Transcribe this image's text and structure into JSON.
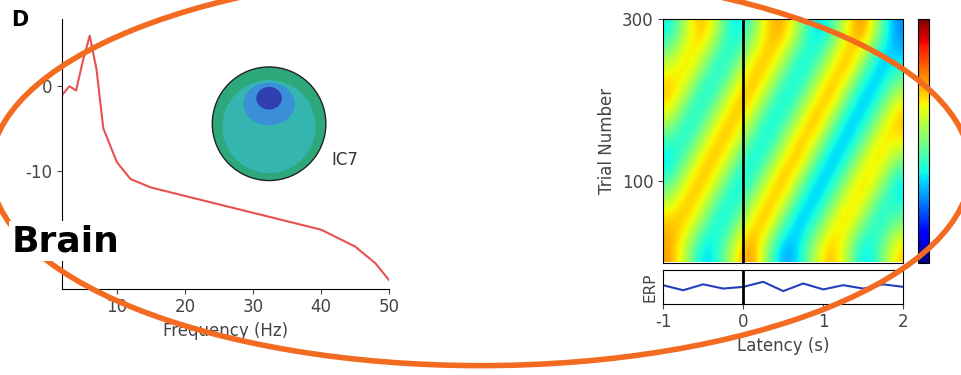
{
  "panel_label": "D",
  "label": "Brain",
  "chart_data": [
    {
      "type": "line",
      "xlabel": "Frequency (Hz)",
      "x": [
        2,
        3,
        4,
        5,
        6,
        7,
        8,
        10,
        12,
        15,
        20,
        25,
        30,
        35,
        40,
        45,
        48,
        50
      ],
      "values": [
        -1,
        0,
        -0.5,
        3,
        6,
        2,
        -5,
        -9,
        -11,
        -12,
        -13,
        -14,
        -15,
        -16,
        -17,
        -19,
        -21,
        -23
      ],
      "color": "#e8514f",
      "xlim": [
        2,
        50
      ],
      "xticks": [
        10,
        20,
        30,
        40,
        50
      ],
      "ylim": [
        -24,
        8
      ],
      "yticks": [
        -10,
        0
      ],
      "annotations": [
        "IC7"
      ]
    },
    {
      "type": "heatmap",
      "ylabel": "Trial Number",
      "xlim": [
        -1,
        2
      ],
      "ylim": [
        0,
        300
      ],
      "yticks": [
        100,
        300
      ],
      "color_range": [
        -1,
        1
      ],
      "vlines": [
        0
      ],
      "cells": [
        [
          0.5,
          0.1,
          -0.4,
          -0.2,
          0.3,
          0.6,
          0.0,
          -0.5,
          -0.3,
          0.2,
          0.5,
          0.1,
          -0.4,
          -0.1,
          0.4
        ],
        [
          0.4,
          0.5,
          0.1,
          -0.4,
          -0.2,
          0.3,
          0.6,
          0.0,
          -0.5,
          -0.3,
          0.2,
          0.5,
          0.1,
          -0.4,
          -0.1
        ],
        [
          -0.1,
          0.4,
          0.5,
          0.1,
          -0.4,
          -0.2,
          0.3,
          0.6,
          0.0,
          -0.5,
          -0.3,
          0.2,
          0.5,
          0.1,
          -0.4
        ],
        [
          -0.4,
          -0.1,
          0.4,
          0.5,
          0.1,
          -0.4,
          -0.2,
          0.3,
          0.6,
          0.0,
          -0.5,
          -0.3,
          0.2,
          0.5,
          0.1
        ],
        [
          0.1,
          -0.4,
          -0.1,
          0.4,
          0.5,
          0.1,
          -0.4,
          -0.2,
          0.3,
          0.6,
          0.0,
          -0.5,
          -0.3,
          0.2,
          0.5
        ],
        [
          0.5,
          0.1,
          -0.4,
          -0.1,
          0.4,
          0.5,
          0.1,
          -0.4,
          -0.2,
          0.3,
          0.6,
          0.0,
          -0.5,
          -0.3,
          0.2
        ],
        [
          0.2,
          0.5,
          0.1,
          -0.4,
          -0.1,
          0.4,
          0.5,
          0.1,
          -0.4,
          -0.2,
          0.3,
          0.6,
          0.0,
          -0.5,
          -0.3
        ],
        [
          -0.3,
          0.2,
          0.5,
          0.1,
          -0.4,
          -0.1,
          0.4,
          0.5,
          0.1,
          -0.4,
          -0.2,
          0.3,
          0.6,
          0.0,
          -0.5
        ]
      ]
    },
    {
      "type": "line",
      "ylabel": "ERP",
      "xlabel": "Latency (s)",
      "x": [
        -1,
        -0.75,
        -0.5,
        -0.25,
        0,
        0.25,
        0.5,
        0.75,
        1,
        1.25,
        1.5,
        1.75,
        2
      ],
      "values": [
        0.1,
        -0.2,
        0.15,
        -0.1,
        0.0,
        0.3,
        -0.25,
        0.2,
        -0.15,
        0.1,
        -0.1,
        0.15,
        0.0
      ],
      "color": "#2040c0",
      "xlim": [
        -1,
        2
      ],
      "xticks": [
        -1,
        0,
        1,
        2
      ],
      "ylim": [
        -1,
        1
      ],
      "tick_labels": "x",
      "vlines": [
        0
      ]
    }
  ]
}
